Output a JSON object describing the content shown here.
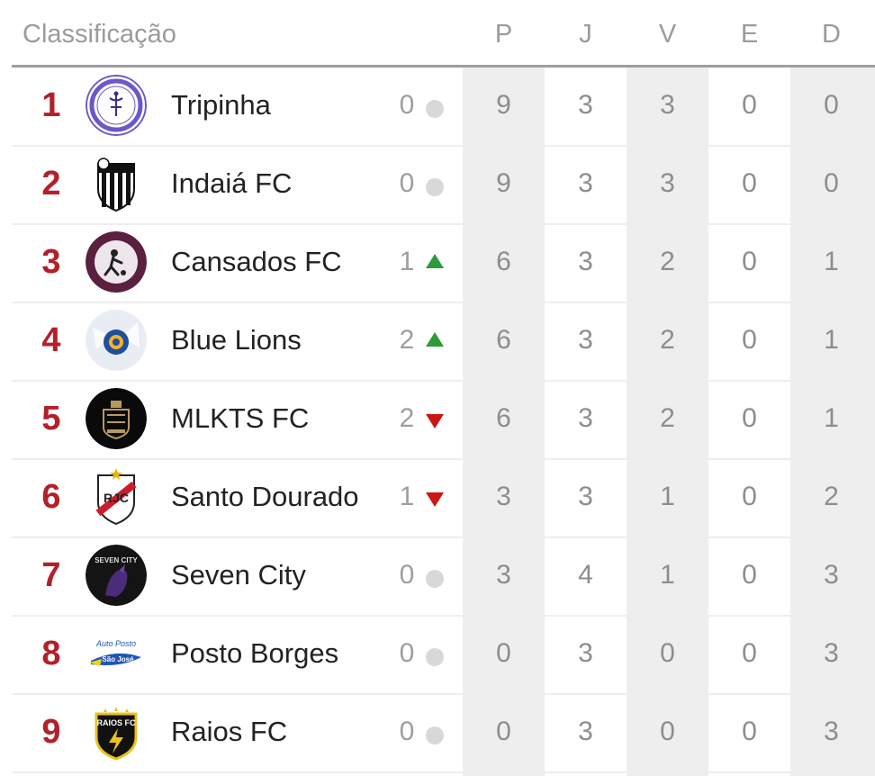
{
  "header": {
    "title": "Classificação",
    "columns": [
      "P",
      "J",
      "V",
      "E",
      "D"
    ]
  },
  "rows": [
    {
      "pos": "1",
      "team": "Tripinha",
      "logo": "tripinha-logo",
      "move": "0",
      "trend": "same",
      "stats": [
        "9",
        "3",
        "3",
        "0",
        "0"
      ]
    },
    {
      "pos": "2",
      "team": "Indaiá FC",
      "logo": "indaia-fc-logo",
      "move": "0",
      "trend": "same",
      "stats": [
        "9",
        "3",
        "3",
        "0",
        "0"
      ]
    },
    {
      "pos": "3",
      "team": "Cansados FC",
      "logo": "cansados-fc-logo",
      "move": "1",
      "trend": "up",
      "stats": [
        "6",
        "3",
        "2",
        "0",
        "1"
      ]
    },
    {
      "pos": "4",
      "team": "Blue Lions",
      "logo": "blue-lions-logo",
      "move": "2",
      "trend": "up",
      "stats": [
        "6",
        "3",
        "2",
        "0",
        "1"
      ]
    },
    {
      "pos": "5",
      "team": "MLKTS FC",
      "logo": "mlkts-fc-logo",
      "move": "2",
      "trend": "down",
      "stats": [
        "6",
        "3",
        "2",
        "0",
        "1"
      ]
    },
    {
      "pos": "6",
      "team": "Santo Dourado",
      "logo": "santo-dourado-logo",
      "move": "1",
      "trend": "down",
      "stats": [
        "3",
        "3",
        "1",
        "0",
        "2"
      ]
    },
    {
      "pos": "7",
      "team": "Seven City",
      "logo": "seven-city-logo",
      "move": "0",
      "trend": "same",
      "stats": [
        "3",
        "4",
        "1",
        "0",
        "3"
      ]
    },
    {
      "pos": "8",
      "team": "Posto Borges",
      "logo": "posto-borges-logo",
      "move": "0",
      "trend": "same",
      "stats": [
        "0",
        "3",
        "0",
        "0",
        "3"
      ]
    },
    {
      "pos": "9",
      "team": "Raios FC",
      "logo": "raios-fc-logo",
      "move": "0",
      "trend": "same",
      "stats": [
        "0",
        "3",
        "0",
        "0",
        "3"
      ]
    }
  ],
  "colors": {
    "position": "#b3202a",
    "up": "#2e9a3c",
    "down": "#cc1515",
    "same": "#d8d8d8",
    "shade": "#eeeeee"
  }
}
